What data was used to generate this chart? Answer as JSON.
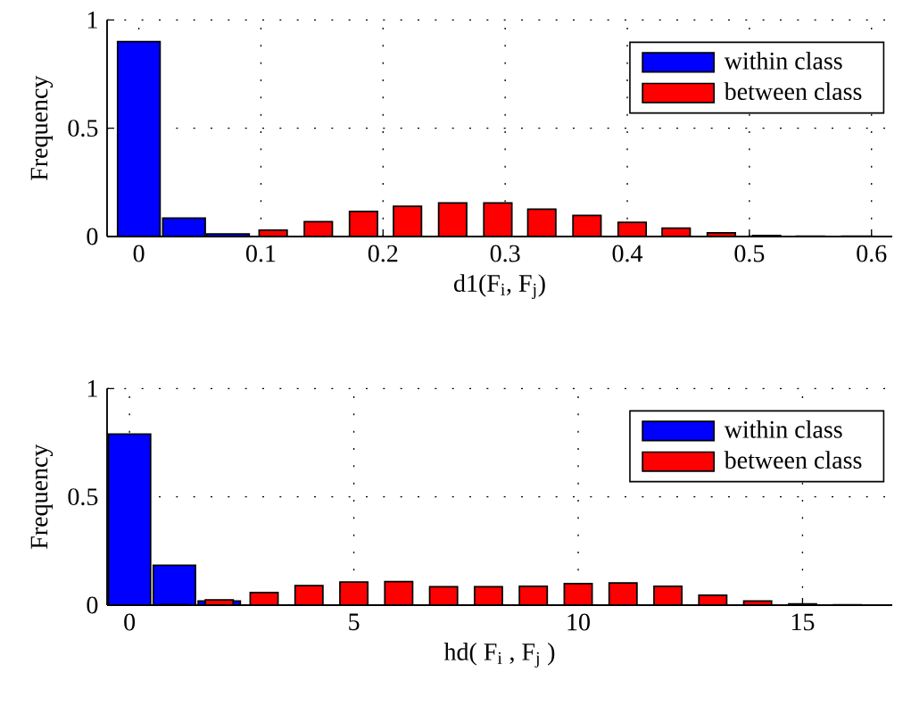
{
  "chart_data": [
    {
      "type": "bar",
      "xlabel": "d1(F$_{i}$, F$_{j}$)",
      "ylabel": "Frequency",
      "x": [
        0,
        0.037,
        0.073,
        0.11,
        0.147,
        0.184,
        0.22,
        0.257,
        0.294,
        0.33,
        0.367,
        0.404,
        0.44,
        0.477,
        0.514,
        0.55,
        0.587
      ],
      "series": [
        {
          "name": "within class",
          "color": "#0000ff",
          "values": [
            0.9,
            0.085,
            0.012,
            null,
            null,
            null,
            null,
            null,
            null,
            null,
            null,
            null,
            null,
            null,
            null,
            null,
            null
          ]
        },
        {
          "name": "between class",
          "color": "#ff0000",
          "values": [
            null,
            null,
            null,
            0.029,
            0.068,
            0.116,
            0.14,
            0.155,
            0.155,
            0.126,
            0.097,
            0.065,
            0.039,
            0.017,
            0.005,
            0.002,
            0.001
          ]
        }
      ],
      "xlim": [
        -0.026,
        0.617
      ],
      "ylim": [
        0,
        1
      ],
      "xticks": [
        0,
        0.1,
        0.2,
        0.3,
        0.4,
        0.5,
        0.6
      ],
      "yticks": [
        0,
        0.5,
        1
      ],
      "grid": true,
      "legend": "top right"
    },
    {
      "type": "bar",
      "xlabel": "hd( F$_{i}$ , F$_{j}$ )",
      "ylabel": "Frequency",
      "x": [
        0,
        1,
        2,
        3,
        4,
        5,
        6,
        7,
        8,
        9,
        10,
        11,
        12,
        13,
        14,
        15,
        16
      ],
      "series": [
        {
          "name": "within class",
          "color": "#0000ff",
          "values": [
            0.79,
            0.184,
            0.019,
            null,
            null,
            null,
            null,
            null,
            null,
            null,
            null,
            null,
            null,
            null,
            null,
            null,
            null
          ]
        },
        {
          "name": "between class",
          "color": "#ff0000",
          "values": [
            null,
            0.003,
            0.024,
            0.058,
            0.09,
            0.107,
            0.109,
            0.085,
            0.085,
            0.087,
            0.099,
            0.102,
            0.087,
            0.046,
            0.019,
            0.006,
            0.002
          ]
        }
      ],
      "xlim": [
        -0.5,
        17
      ],
      "ylim": [
        0,
        1
      ],
      "xticks": [
        0,
        5,
        10,
        15
      ],
      "yticks": [
        0,
        0.5,
        1
      ],
      "grid": true,
      "legend": "top right"
    }
  ]
}
